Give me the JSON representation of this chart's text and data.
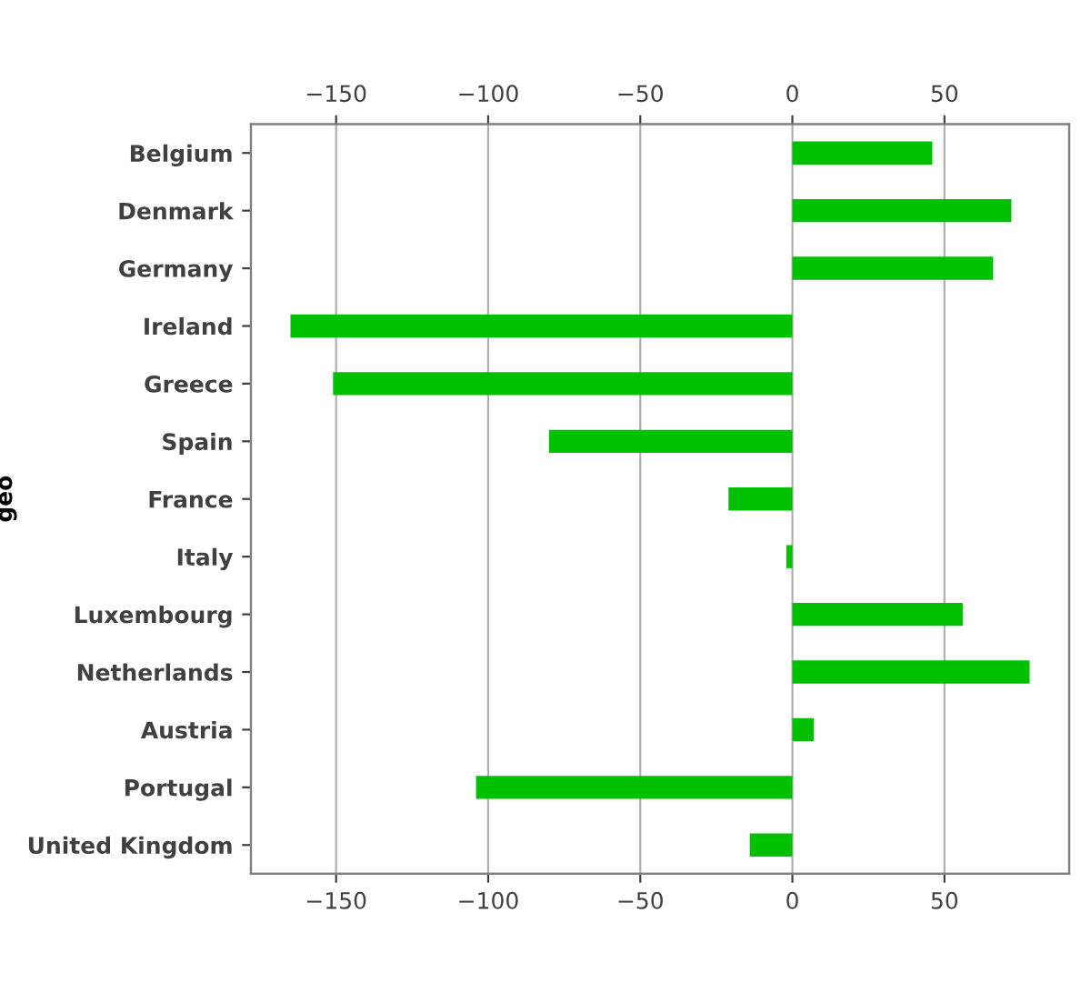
{
  "chart_data": {
    "type": "bar",
    "orientation": "horizontal",
    "ylabel": "geo",
    "categories": [
      "Belgium",
      "Denmark",
      "Germany",
      "Ireland",
      "Greece",
      "Spain",
      "France",
      "Italy",
      "Luxembourg",
      "Netherlands",
      "Austria",
      "Portugal",
      "United Kingdom"
    ],
    "values": [
      46,
      72,
      66,
      -165,
      -151,
      -80,
      -21,
      -2,
      56,
      78,
      7,
      -104,
      -14
    ],
    "color": "#00c000",
    "xlim": [
      -178,
      91
    ],
    "xticks": [
      {
        "value": -150,
        "label": "−150"
      },
      {
        "value": -100,
        "label": "−100"
      },
      {
        "value": -50,
        "label": "−50"
      },
      0,
      50
    ],
    "x2lim": [
      -178,
      91
    ],
    "x2ticks": [
      {
        "value": -150,
        "label": "−150"
      },
      {
        "value": -100,
        "label": "−100"
      },
      {
        "value": -50,
        "label": "−50"
      },
      0,
      50
    ],
    "grid": "x",
    "legend": false
  }
}
